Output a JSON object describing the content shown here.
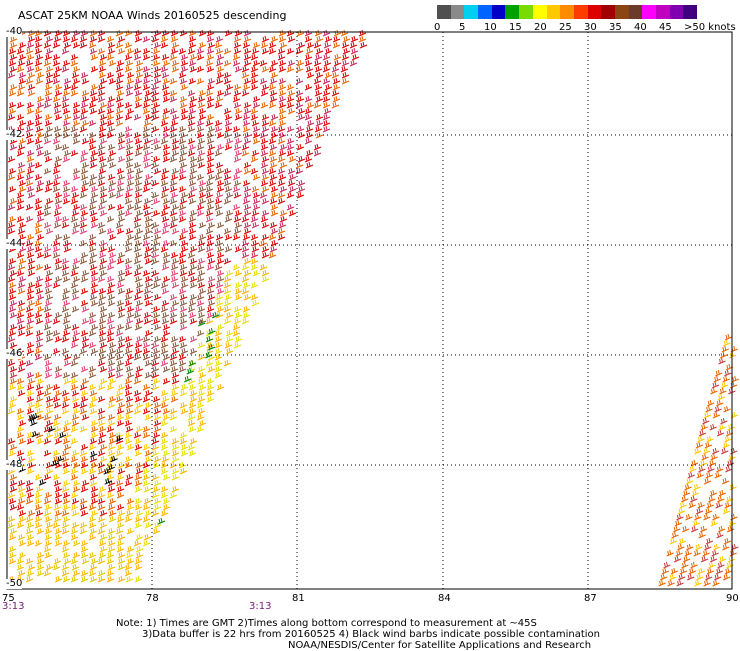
{
  "title": "ASCAT 25KM NOAA Winds 20160525 descending",
  "legend": {
    "colors": [
      "#505050",
      "#8a8a8a",
      "#00d0f0",
      "#0064ff",
      "#0000c8",
      "#00a000",
      "#78dc00",
      "#ffff00",
      "#ffc800",
      "#ff8c00",
      "#ff3c00",
      "#dc0000",
      "#a00000",
      "#8b4513",
      "#6b3a2a",
      "#ff00ff",
      "#c000c0",
      "#8000b0",
      "#400080"
    ],
    "labels": [
      "0",
      "5",
      "10",
      "15",
      "20",
      "25",
      "30",
      "35",
      "40",
      "45",
      ">50 knots"
    ]
  },
  "axes": {
    "lon_labels": [
      "75",
      "78",
      "81",
      "84",
      "87",
      "90"
    ],
    "lat_labels": [
      "-40",
      "-42",
      "-44",
      "-46",
      "-48",
      "-50"
    ]
  },
  "times": [
    "3:13",
    "3:13"
  ],
  "notes": [
    "Note: 1) Times are GMT 2)Times along bottom correspond to measurement at ~45S",
    "3)Data buffer is 22 hrs from 20160525 4) Black wind barbs indicate possible contamination",
    "NOAA/NESDIS/Center for Satellite Applications and Research"
  ]
}
